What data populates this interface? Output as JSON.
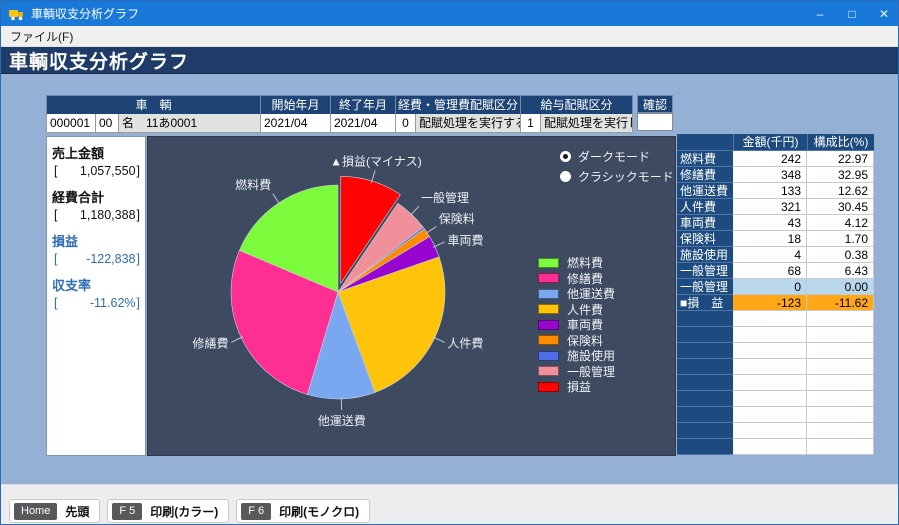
{
  "window": {
    "title": "車輌収支分析グラフ",
    "minimize": "–",
    "maximize": "□",
    "close": "✕"
  },
  "menu": {
    "file": "ファイル(F)"
  },
  "page": {
    "title": "車輌収支分析グラフ"
  },
  "selection_bar": {
    "headers": {
      "vehicle": "車　輌",
      "start_ym": "開始年月",
      "end_ym": "終了年月",
      "expense_alloc": "経費・管理費配賦区分",
      "salary_alloc": "給与配賦区分"
    },
    "row": {
      "vehicle_code": "000001",
      "vehicle_sub": "00",
      "vehicle_name": "名　11あ0001",
      "start_ym": "2021/04",
      "end_ym": "2021/04",
      "expense_alloc_code": "0",
      "expense_alloc_text": "配賦処理を実行する",
      "salary_alloc_code": "1",
      "salary_alloc_text": "配賦処理を実行しない"
    },
    "confirm_label": "確認",
    "confirm_value": ""
  },
  "summary_panel": {
    "items": [
      {
        "label": "売上金額",
        "value": "1,057,550",
        "color": "black"
      },
      {
        "label": "経費合計",
        "value": "1,180,388",
        "color": "black"
      },
      {
        "label": "損益",
        "value": "-122,838",
        "color": "blue"
      },
      {
        "label": "収支率",
        "value": "-11.62%",
        "color": "blue"
      }
    ]
  },
  "view_mode": {
    "options": [
      {
        "label": "ダークモード",
        "selected": true
      },
      {
        "label": "クラシックモード",
        "selected": false
      }
    ]
  },
  "chart_data": {
    "type": "pie",
    "start_angle_deg": 0,
    "direction": "clockwise",
    "unit": "percent_of_total",
    "slices": [
      {
        "name": "損益",
        "pie_label": "▲損益(マイナス)",
        "value": 11.62,
        "color": "#FF0202",
        "exploded": true,
        "labeled": true
      },
      {
        "name": "一般管理",
        "value": 6.43,
        "color": "#F0909A",
        "exploded": false,
        "labeled": true
      },
      {
        "name": "施設使用",
        "value": 0.38,
        "color": "#4E6EE6",
        "exploded": false,
        "labeled": false
      },
      {
        "name": "保険料",
        "value": 1.7,
        "color": "#FF8C00",
        "exploded": false,
        "labeled": true
      },
      {
        "name": "車両費",
        "value": 4.12,
        "color": "#9606CE",
        "exploded": false,
        "labeled": true
      },
      {
        "name": "人件費",
        "value": 30.45,
        "color": "#FFC40A",
        "exploded": false,
        "labeled": true
      },
      {
        "name": "他運送費",
        "value": 12.62,
        "color": "#79A7F0",
        "exploded": false,
        "labeled": true
      },
      {
        "name": "修繕費",
        "value": 32.95,
        "color": "#FF2E93",
        "exploded": false,
        "labeled": true
      },
      {
        "name": "燃料費",
        "value": 22.97,
        "color": "#7CFA3C",
        "exploded": false,
        "labeled": true
      }
    ],
    "legend": [
      {
        "label": "燃料費",
        "color": "#7CFA3C"
      },
      {
        "label": "修繕費",
        "color": "#FF2E93"
      },
      {
        "label": "他運送費",
        "color": "#79A7F0"
      },
      {
        "label": "人件費",
        "color": "#FFC40A"
      },
      {
        "label": "車両費",
        "color": "#9606CE"
      },
      {
        "label": "保険料",
        "color": "#FF8C00"
      },
      {
        "label": "施設使用",
        "color": "#4E6EE6"
      },
      {
        "label": "一般管理",
        "color": "#F0909A"
      },
      {
        "label": "損益",
        "color": "#FF0202"
      }
    ]
  },
  "right_table": {
    "headers": {
      "amount": "金額(千円)",
      "ratio": "構成比(%)"
    },
    "rows": [
      {
        "label": "燃料費",
        "amount": "242",
        "ratio": "22.97",
        "highlight": ""
      },
      {
        "label": "修繕費",
        "amount": "348",
        "ratio": "32.95",
        "highlight": ""
      },
      {
        "label": "他運送費",
        "amount": "133",
        "ratio": "12.62",
        "highlight": ""
      },
      {
        "label": "人件費",
        "amount": "321",
        "ratio": "30.45",
        "highlight": ""
      },
      {
        "label": "車両費",
        "amount": "43",
        "ratio": "4.12",
        "highlight": ""
      },
      {
        "label": "保険料",
        "amount": "18",
        "ratio": "1.70",
        "highlight": ""
      },
      {
        "label": "施設使用",
        "amount": "4",
        "ratio": "0.38",
        "highlight": ""
      },
      {
        "label": "一般管理",
        "amount": "68",
        "ratio": "6.43",
        "highlight": ""
      },
      {
        "label": "一般管理",
        "amount": "0",
        "ratio": "0.00",
        "highlight": "lightblue"
      },
      {
        "label": "■損　益",
        "amount": "-123",
        "ratio": "-11.62",
        "highlight": "orange"
      }
    ],
    "empty_rows": 9
  },
  "toolbar": {
    "buttons": [
      {
        "key": "Home",
        "label": "先頭"
      },
      {
        "key": "F 5",
        "label": "印刷(カラー)"
      },
      {
        "key": "F 6",
        "label": "印刷(モノクロ)"
      }
    ]
  }
}
